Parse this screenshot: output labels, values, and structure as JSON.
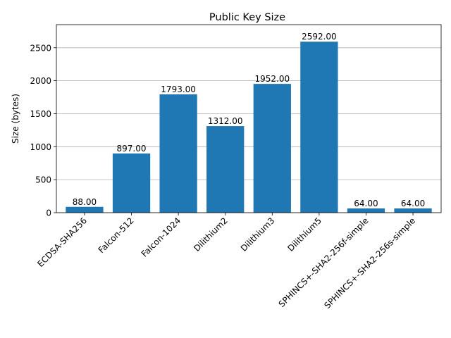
{
  "chart_data": {
    "type": "bar",
    "title": "Public Key Size",
    "xlabel": "",
    "ylabel": "Size (bytes)",
    "categories": [
      "ECDSA-SHA256",
      "Falcon-512",
      "Falcon-1024",
      "Dilithium2",
      "Dilithium3",
      "Dilithium5",
      "SPHINCS+-SHA2-256f-simple",
      "SPHINCS+-SHA2-256s-simple"
    ],
    "values": [
      88,
      897,
      1793,
      1312,
      1952,
      2592,
      64,
      64
    ],
    "value_labels": [
      "88.00",
      "897.00",
      "1793.00",
      "1312.00",
      "1952.00",
      "2592.00",
      "64.00",
      "64.00"
    ],
    "yticks": [
      0,
      500,
      1000,
      1500,
      2000,
      2500
    ],
    "ytick_labels": [
      "0",
      "500",
      "1000",
      "1500",
      "2000",
      "2500"
    ],
    "ylim": [
      0,
      2850
    ],
    "grid": "y-axis",
    "bar_color": "#1f77b4",
    "grid_color": "#b0b0b0"
  }
}
